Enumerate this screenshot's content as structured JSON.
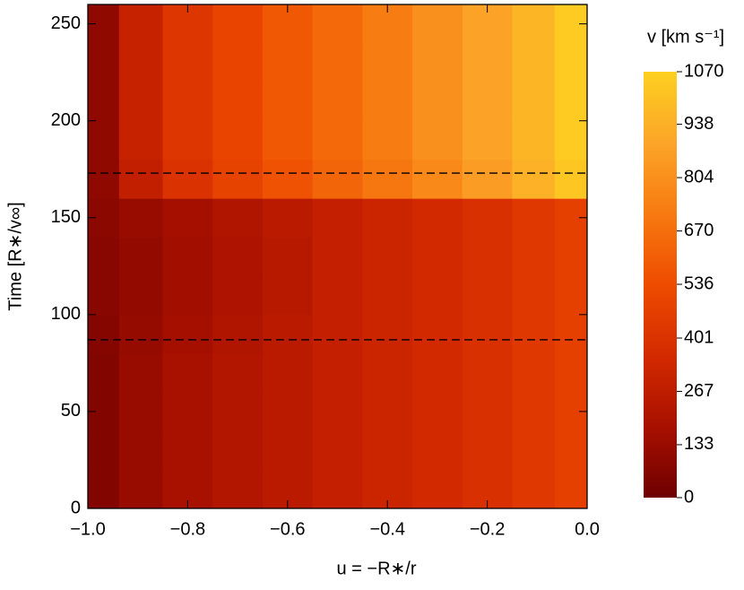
{
  "chart_data": {
    "type": "contour",
    "xlabel": "u = −R∗/r",
    "ylabel": "Time [R∗/v∞]",
    "colorbar_label": "v [km s⁻¹]",
    "xlim": [
      -1.0,
      0.0
    ],
    "xticks": [
      {
        "value": -1.0,
        "label": "−1.0"
      },
      {
        "value": -0.8,
        "label": "−0.8"
      },
      {
        "value": -0.6,
        "label": "−0.6"
      },
      {
        "value": -0.4,
        "label": "−0.4"
      },
      {
        "value": -0.2,
        "label": "−0.2"
      },
      {
        "value": 0.0,
        "label": "0.0"
      }
    ],
    "ylim": [
      0,
      260
    ],
    "yticks": [
      0,
      50,
      100,
      150,
      200,
      250
    ],
    "zlim": [
      0,
      1070
    ],
    "zticks": [
      0,
      133,
      267,
      401,
      536,
      670,
      804,
      938,
      1070
    ],
    "colormap": [
      "#6e0000",
      "#a81000",
      "#d42a00",
      "#ee4c00",
      "#f77a10",
      "#fca528",
      "#fdd020"
    ],
    "hlines": [
      173,
      87
    ],
    "x": [
      -0.975,
      -0.9,
      -0.8,
      -0.7,
      -0.6,
      -0.5,
      -0.4,
      -0.3,
      -0.2,
      -0.1,
      -0.03
    ],
    "y": [
      10,
      30,
      50,
      70,
      90,
      110,
      130,
      150,
      170,
      190,
      210,
      230,
      250
    ],
    "z": [
      [
        60,
        130,
        180,
        220,
        250,
        290,
        320,
        350,
        390,
        430,
        470
      ],
      [
        60,
        130,
        180,
        220,
        250,
        290,
        320,
        350,
        390,
        430,
        470
      ],
      [
        60,
        130,
        180,
        220,
        250,
        290,
        320,
        350,
        390,
        430,
        470
      ],
      [
        60,
        130,
        180,
        220,
        250,
        290,
        320,
        350,
        390,
        430,
        470
      ],
      [
        70,
        120,
        170,
        210,
        250,
        290,
        320,
        350,
        390,
        430,
        470
      ],
      [
        80,
        110,
        160,
        200,
        240,
        290,
        320,
        350,
        390,
        430,
        470
      ],
      [
        80,
        110,
        160,
        200,
        240,
        290,
        320,
        350,
        390,
        430,
        470
      ],
      [
        90,
        130,
        170,
        210,
        250,
        290,
        320,
        350,
        390,
        430,
        470
      ],
      [
        100,
        280,
        400,
        480,
        560,
        630,
        700,
        780,
        860,
        940,
        1030
      ],
      [
        100,
        300,
        420,
        500,
        580,
        650,
        720,
        800,
        880,
        960,
        1050
      ],
      [
        100,
        300,
        420,
        500,
        580,
        650,
        720,
        800,
        880,
        960,
        1050
      ],
      [
        100,
        300,
        420,
        500,
        580,
        650,
        720,
        800,
        880,
        960,
        1050
      ],
      [
        100,
        300,
        420,
        500,
        580,
        650,
        720,
        800,
        880,
        960,
        1050
      ]
    ]
  }
}
